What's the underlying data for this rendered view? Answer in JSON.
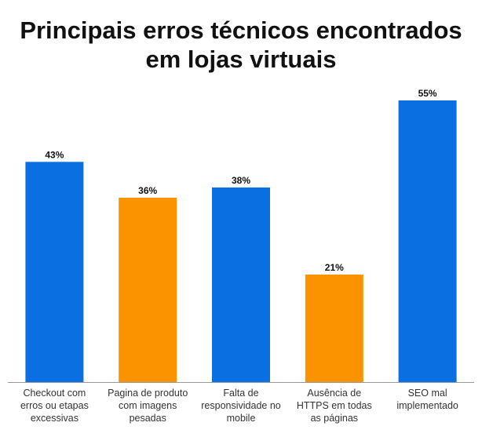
{
  "title_lines": [
    "Principais erros técnicos encontrados",
    "em lojas virtuais"
  ],
  "colors": {
    "blue": "#0a6fe0",
    "orange": "#fb9300",
    "axis": "#999999"
  },
  "chart_data": {
    "type": "bar",
    "title": "Principais erros técnicos encontrados em lojas virtuais",
    "categories": [
      [
        "Checkout com",
        "erros ou etapas",
        "excessivas"
      ],
      [
        "Pagina de produto",
        "com imagens",
        "pesadas"
      ],
      [
        "Falta de",
        "responsividade no",
        "mobile"
      ],
      [
        "Ausência de",
        "HTTPS em todas",
        "as páginas"
      ],
      [
        "SEO mal",
        "implementado"
      ]
    ],
    "values": [
      43,
      36,
      38,
      21,
      55
    ],
    "value_labels": [
      "43%",
      "36%",
      "38%",
      "21%",
      "55%"
    ],
    "bar_colors": [
      "#0a6fe0",
      "#fb9300",
      "#0a6fe0",
      "#fb9300",
      "#0a6fe0"
    ],
    "ylim": [
      0,
      55
    ],
    "xlabel": "",
    "ylabel": "",
    "grid": false,
    "legend": "none"
  }
}
